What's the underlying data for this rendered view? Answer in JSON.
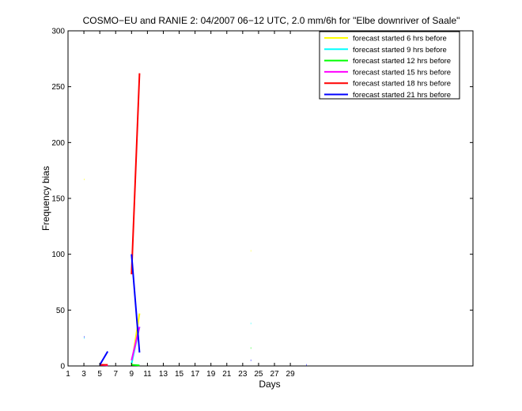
{
  "chart_data": {
    "type": "line",
    "title": "COSMO−EU and RANIE 2: 04/2007 06−12 UTC, 2.0 mm/6h for \"Elbe downriver of Saale\"",
    "xlabel": "Days",
    "ylabel": "Frequency bias",
    "xlim": [
      1,
      52
    ],
    "ylim": [
      0,
      300
    ],
    "xticks": [
      1,
      3,
      5,
      7,
      9,
      11,
      13,
      15,
      17,
      19,
      21,
      23,
      25,
      27,
      29
    ],
    "yticks": [
      0,
      50,
      100,
      150,
      200,
      250,
      300
    ],
    "legend_position": "top-right",
    "series": [
      {
        "name": "forecast started 6 hrs before",
        "color": "#ffff00",
        "segments": [
          [
            [
              3,
              167
            ],
            [
              3.05,
              167
            ]
          ],
          [
            [
              9,
              1
            ],
            [
              10,
              47
            ]
          ],
          [
            [
              24,
              103
            ],
            [
              24.05,
              103
            ]
          ]
        ]
      },
      {
        "name": "forecast started 9 hrs before",
        "color": "#00ffff",
        "segments": [
          [
            [
              3,
              25
            ],
            [
              3.05,
              25
            ]
          ],
          [
            [
              9,
              2
            ],
            [
              10,
              35
            ]
          ],
          [
            [
              24,
              38
            ],
            [
              24.05,
              38
            ]
          ]
        ]
      },
      {
        "name": "forecast started 12 hrs before",
        "color": "#00ff00",
        "segments": [
          [
            [
              9,
              1
            ],
            [
              10,
              0.5
            ]
          ],
          [
            [
              24,
              16
            ],
            [
              24.05,
              16
            ]
          ]
        ]
      },
      {
        "name": "forecast started 15 hrs before",
        "color": "#ff00ff",
        "segments": [
          [
            [
              5,
              1
            ],
            [
              6,
              0.5
            ]
          ],
          [
            [
              9,
              5
            ],
            [
              10,
              35
            ]
          ]
        ]
      },
      {
        "name": "forecast started 18 hrs before",
        "color": "#ff0000",
        "segments": [
          [
            [
              5,
              1
            ],
            [
              6,
              1
            ]
          ],
          [
            [
              9,
              82
            ],
            [
              10,
              262
            ]
          ]
        ]
      },
      {
        "name": "forecast started 21 hrs before",
        "color": "#0000ff",
        "segments": [
          [
            [
              3,
              26
            ],
            [
              3.05,
              26
            ]
          ],
          [
            [
              5,
              1
            ],
            [
              6,
              13
            ]
          ],
          [
            [
              9,
              100
            ],
            [
              10,
              12
            ]
          ],
          [
            [
              24,
              5
            ],
            [
              24.05,
              5
            ]
          ],
          [
            [
              31,
              1
            ],
            [
              31.05,
              1
            ]
          ]
        ]
      }
    ]
  }
}
